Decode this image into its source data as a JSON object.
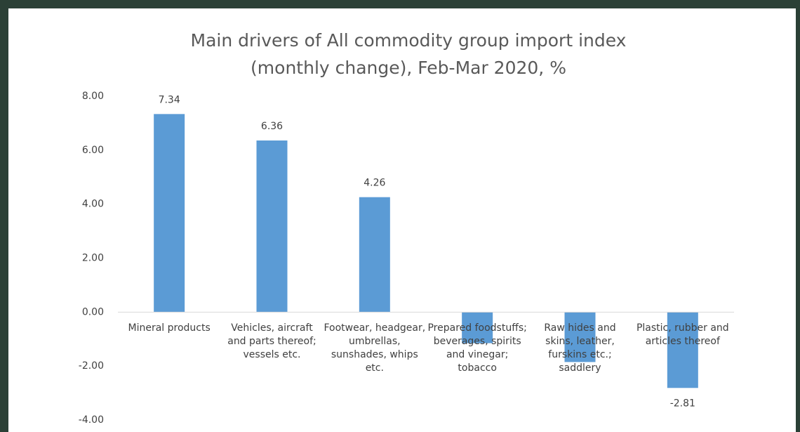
{
  "chart_data": {
    "type": "bar",
    "title": "Main drivers of All commodity group import index (monthly change), Feb-Mar 2020, %",
    "categories": [
      "Mineral products",
      "Vehicles, aircraft and parts thereof; vessels etc.",
      "Footwear, headgear, umbrellas, sunshades, whips etc.",
      "Prepared foodstuffs; beverages, spirits and vinegar; tobacco",
      "Raw hides and skins, leather, furskins etc.; saddlery",
      "Plastic, rubber and articles thereof"
    ],
    "values": [
      7.34,
      6.36,
      4.26,
      -1.15,
      -1.85,
      -2.81
    ],
    "value_labels": [
      "7.34",
      "6.36",
      "4.26",
      null,
      null,
      "-2.81"
    ],
    "color": "#5b9bd5",
    "ylim": [
      -4,
      8
    ],
    "yticks": [
      {
        "value": -4,
        "label": "-4.00"
      },
      {
        "value": -2,
        "label": "-2.00"
      },
      {
        "value": 0,
        "label": "0.00"
      },
      {
        "value": 2,
        "label": "2.00"
      },
      {
        "value": 4,
        "label": "4.00"
      },
      {
        "value": 6,
        "label": "6.00"
      },
      {
        "value": 8,
        "label": "8.00"
      }
    ],
    "grid": false
  }
}
